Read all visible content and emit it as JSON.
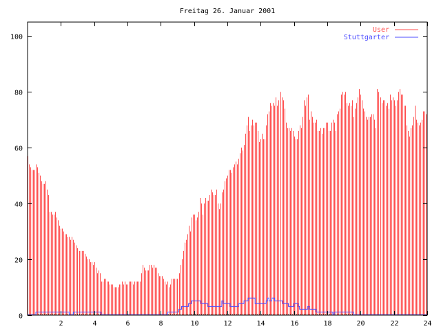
{
  "chart_data": {
    "type": "bar",
    "style": "impulses",
    "title": "Freitag 26. Januar 2001",
    "xlabel": "",
    "ylabel": "",
    "xlim": [
      0,
      24
    ],
    "ylim": [
      0,
      105
    ],
    "x_step_hours": 0.08333,
    "xticks": [
      "2",
      "4",
      "6",
      "8",
      "10",
      "12",
      "14",
      "16",
      "18",
      "20",
      "22",
      "24"
    ],
    "xtick_values": [
      2,
      4,
      6,
      8,
      10,
      12,
      14,
      16,
      18,
      20,
      22,
      24
    ],
    "yticks": [
      "0",
      "20",
      "40",
      "60",
      "80",
      "100"
    ],
    "ytick_values": [
      0,
      20,
      40,
      60,
      80,
      100
    ],
    "grid": false,
    "legend_position": "top-right",
    "series": [
      {
        "name": "User",
        "color": "#ff4d4d",
        "kind": "impulses",
        "values": [
          57,
          54,
          53,
          52,
          52,
          52,
          54,
          53,
          51,
          50,
          48,
          47,
          47,
          48,
          45,
          43,
          37,
          37,
          36,
          36,
          37,
          35,
          34,
          32,
          31,
          31,
          30,
          29,
          29,
          28,
          28,
          27,
          28,
          27,
          26,
          25,
          24,
          23,
          23,
          23,
          23,
          22,
          21,
          20,
          20,
          19,
          19,
          18,
          19,
          17,
          15,
          16,
          15,
          12,
          12,
          13,
          13,
          12,
          12,
          11,
          11,
          11,
          10,
          10,
          10,
          10,
          11,
          11,
          12,
          11,
          12,
          11,
          11,
          12,
          12,
          12,
          11,
          12,
          12,
          12,
          12,
          12,
          15,
          18,
          17,
          16,
          16,
          16,
          18,
          18,
          17,
          18,
          17,
          17,
          15,
          14,
          14,
          14,
          13,
          12,
          11,
          12,
          10,
          11,
          13,
          13,
          13,
          13,
          13,
          15,
          18,
          20,
          23,
          26,
          27,
          29,
          32,
          30,
          35,
          36,
          36,
          34,
          35,
          37,
          42,
          40,
          36,
          40,
          42,
          41,
          41,
          43,
          45,
          44,
          43,
          43,
          45,
          40,
          38,
          40,
          44,
          45,
          48,
          49,
          50,
          52,
          52,
          51,
          53,
          54,
          55,
          54,
          56,
          58,
          60,
          59,
          61,
          65,
          68,
          71,
          66,
          68,
          70,
          68,
          69,
          69,
          66,
          62,
          63,
          65,
          63,
          63,
          68,
          72,
          73,
          76,
          75,
          76,
          75,
          78,
          75,
          77,
          80,
          78,
          77,
          74,
          69,
          67,
          67,
          66,
          67,
          66,
          64,
          63,
          63,
          66,
          68,
          67,
          71,
          77,
          75,
          78,
          79,
          70,
          73,
          71,
          69,
          69,
          70,
          66,
          66,
          67,
          65,
          67,
          67,
          69,
          69,
          66,
          66,
          69,
          70,
          69,
          66,
          72,
          73,
          74,
          79,
          80,
          79,
          80,
          76,
          75,
          76,
          75,
          77,
          71,
          74,
          76,
          78,
          81,
          79,
          77,
          74,
          73,
          71,
          70,
          71,
          71,
          72,
          72,
          70,
          67,
          81,
          80,
          78,
          76,
          77,
          77,
          75,
          76,
          74,
          79,
          77,
          78,
          77,
          75,
          77,
          80,
          81,
          79,
          79,
          75,
          75,
          68,
          66,
          64,
          67,
          68,
          71,
          75,
          70,
          69,
          68,
          69,
          70,
          73,
          73,
          72
        ]
      },
      {
        "name": "Stuttgarter",
        "color": "#4d4dff",
        "kind": "steps",
        "values": [
          0,
          0,
          0,
          0,
          0,
          0,
          1,
          1,
          1,
          1,
          1,
          1,
          1,
          1,
          1,
          1,
          1,
          1,
          1,
          1,
          1,
          1,
          1,
          1,
          1,
          1,
          1,
          1,
          1,
          1,
          0,
          0,
          0,
          1,
          1,
          1,
          1,
          1,
          1,
          1,
          1,
          1,
          1,
          1,
          1,
          1,
          1,
          1,
          1,
          1,
          1,
          1,
          1,
          0,
          0,
          0,
          0,
          0,
          0,
          0,
          0,
          0,
          0,
          0,
          0,
          0,
          0,
          0,
          0,
          0,
          0,
          0,
          0,
          0,
          0,
          0,
          0,
          0,
          0,
          0,
          0,
          0,
          0,
          0,
          0,
          0,
          0,
          0,
          0,
          0,
          0,
          0,
          0,
          0,
          0,
          0,
          0,
          0,
          0,
          0,
          0,
          1,
          1,
          1,
          1,
          1,
          1,
          1,
          1,
          2,
          2,
          3,
          3,
          3,
          3,
          3,
          4,
          4,
          5,
          5,
          5,
          5,
          5,
          5,
          5,
          4,
          4,
          4,
          4,
          4,
          3,
          3,
          3,
          3,
          3,
          3,
          3,
          3,
          3,
          3,
          5,
          4,
          4,
          4,
          4,
          4,
          3,
          3,
          3,
          3,
          3,
          3,
          4,
          4,
          4,
          4,
          5,
          5,
          5,
          6,
          6,
          6,
          6,
          6,
          4,
          4,
          4,
          4,
          4,
          4,
          4,
          4,
          5,
          6,
          5,
          5,
          6,
          6,
          5,
          5,
          5,
          5,
          5,
          5,
          4,
          4,
          4,
          4,
          3,
          3,
          3,
          3,
          4,
          4,
          4,
          3,
          2,
          2,
          2,
          2,
          2,
          2,
          3,
          2,
          2,
          2,
          2,
          2,
          1,
          1,
          1,
          1,
          1,
          1,
          1,
          1,
          1,
          1,
          1,
          1,
          0,
          1,
          1,
          1,
          1,
          1,
          1,
          1,
          1,
          1,
          1,
          1,
          1,
          1,
          1,
          0,
          0,
          0,
          0,
          0,
          0,
          0,
          0,
          0,
          0,
          0,
          0,
          0,
          0,
          0,
          0,
          0,
          0,
          0,
          0,
          0,
          0,
          0,
          0,
          0,
          0,
          0,
          0,
          0,
          0,
          0,
          0,
          0,
          0,
          0,
          0,
          0,
          0,
          0,
          0,
          0,
          0,
          0,
          0,
          0,
          0,
          0,
          0,
          0,
          0,
          0,
          0,
          0
        ]
      }
    ]
  }
}
